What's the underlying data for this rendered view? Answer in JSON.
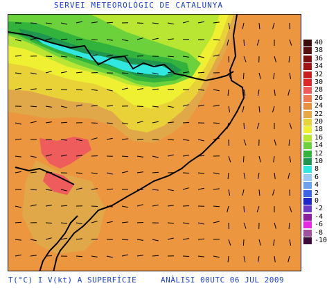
{
  "header": {
    "title": "SERVEI METEOROLÒGIC DE CATALUNYA"
  },
  "footer": {
    "variable": "T(°C) I V(kt) A SUPERFÍCIE",
    "analysis": "ANÀLISI 00UTC 06 JUL 2009"
  },
  "legend": {
    "levels": [
      {
        "label": "40",
        "color": "#3c0a0a"
      },
      {
        "label": "38",
        "color": "#5a0f0f"
      },
      {
        "label": "36",
        "color": "#7a1010"
      },
      {
        "label": "34",
        "color": "#a01414"
      },
      {
        "label": "32",
        "color": "#c81e1e"
      },
      {
        "label": "30",
        "color": "#e02828"
      },
      {
        "label": "28",
        "color": "#f05a5a"
      },
      {
        "label": "26",
        "color": "#f07a50"
      },
      {
        "label": "24",
        "color": "#e8913f"
      },
      {
        "label": "22",
        "color": "#e8a845"
      },
      {
        "label": "20",
        "color": "#e8d235"
      },
      {
        "label": "18",
        "color": "#f0f030"
      },
      {
        "label": "16",
        "color": "#b8e830"
      },
      {
        "label": "14",
        "color": "#6cd23c"
      },
      {
        "label": "12",
        "color": "#32b43c"
      },
      {
        "label": "10",
        "color": "#1e9650"
      },
      {
        "label": "8",
        "color": "#30e8e0"
      },
      {
        "label": "6",
        "color": "#9ac8f0"
      },
      {
        "label": "4",
        "color": "#6ea0f0"
      },
      {
        "label": "2",
        "color": "#3c64e6"
      },
      {
        "label": "0",
        "color": "#1e28c8"
      },
      {
        "label": "-2",
        "color": "#6a3cc8"
      },
      {
        "label": "-4",
        "color": "#8c1ea0"
      },
      {
        "label": "-6",
        "color": "#e628e6"
      },
      {
        "label": "-8",
        "color": "#a050a0"
      },
      {
        "label": "-10",
        "color": "#3c0a3c"
      }
    ]
  },
  "map": {
    "colors": {
      "t24": "#ec9640",
      "t22": "#e0a848",
      "t20": "#e8d238",
      "t18": "#f0f032",
      "t16": "#b8e632",
      "t14": "#6cd23c",
      "t12": "#32b43c",
      "t10": "#1e9650",
      "t8": "#30e8e0",
      "t28": "#ee5c5c",
      "coast": "#000000",
      "wind": "#000000"
    }
  }
}
